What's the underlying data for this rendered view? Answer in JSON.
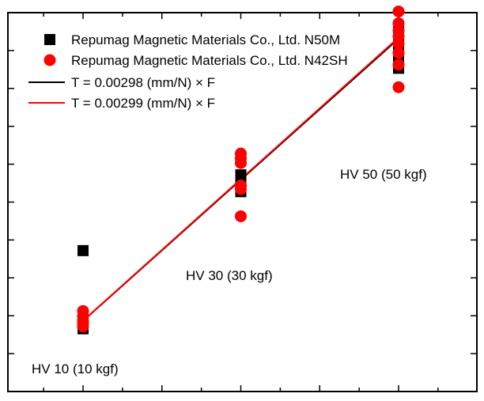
{
  "chart_data": {
    "type": "scatter",
    "xlim": [
      10,
      50
    ],
    "ylim": [
      0,
      0.16
    ],
    "grid": false,
    "legend_position": "top-left",
    "series": [
      {
        "name": "Repumag Magnetic Materials Co., Ltd. N50M",
        "kind": "scatter",
        "marker": "square",
        "color": "#000000",
        "points": [
          [
            10,
            0.0265
          ],
          [
            10,
            0.0272
          ],
          [
            10,
            0.0278
          ],
          [
            10,
            0.0282
          ],
          [
            10,
            0.0288
          ],
          [
            10,
            0.0595
          ],
          [
            30,
            0.0844
          ],
          [
            30,
            0.0852
          ],
          [
            30,
            0.086
          ],
          [
            30,
            0.0868
          ],
          [
            30,
            0.0878
          ],
          [
            30,
            0.089
          ],
          [
            30,
            0.09
          ],
          [
            30,
            0.0915
          ],
          [
            50,
            0.1365
          ],
          [
            50,
            0.1385
          ],
          [
            50,
            0.1405
          ],
          [
            50,
            0.1425
          ],
          [
            50,
            0.1445
          ],
          [
            50,
            0.1465
          ],
          [
            50,
            0.1485
          ],
          [
            50,
            0.1505
          ],
          [
            50,
            0.152
          ]
        ]
      },
      {
        "name": "Repumag Magnetic Materials Co., Ltd. N42SH",
        "kind": "scatter",
        "marker": "circle",
        "color": "#ff0000",
        "points": [
          [
            10,
            0.0275
          ],
          [
            10,
            0.0288
          ],
          [
            10,
            0.03
          ],
          [
            10,
            0.0318
          ],
          [
            10,
            0.034
          ],
          [
            30,
            0.074
          ],
          [
            30,
            0.0855
          ],
          [
            30,
            0.087
          ],
          [
            30,
            0.0965
          ],
          [
            30,
            0.0985
          ],
          [
            30,
            0.1005
          ],
          [
            50,
            0.1285
          ],
          [
            50,
            0.138
          ],
          [
            50,
            0.143
          ],
          [
            50,
            0.147
          ],
          [
            50,
            0.15
          ],
          [
            50,
            0.1525
          ],
          [
            50,
            0.1555
          ],
          [
            50,
            0.1605
          ]
        ]
      },
      {
        "name": "T = 0.00298 (mm/N) × F",
        "kind": "line",
        "color": "#000000",
        "slope": 0.00298,
        "x_range": [
          10,
          50
        ]
      },
      {
        "name": "T = 0.00299 (mm/N) × F",
        "kind": "line",
        "color": "#ff0000",
        "slope": 0.00299,
        "x_range": [
          10,
          50
        ]
      }
    ],
    "annotations": [
      {
        "text": "HV 10 (10 kgf)",
        "x": 10,
        "anchor": "below-left"
      },
      {
        "text": "HV 30 (30 kgf)",
        "x": 30,
        "anchor": "below"
      },
      {
        "text": "HV 50 (50 kgf)",
        "x": 50,
        "anchor": "below-left"
      }
    ]
  }
}
